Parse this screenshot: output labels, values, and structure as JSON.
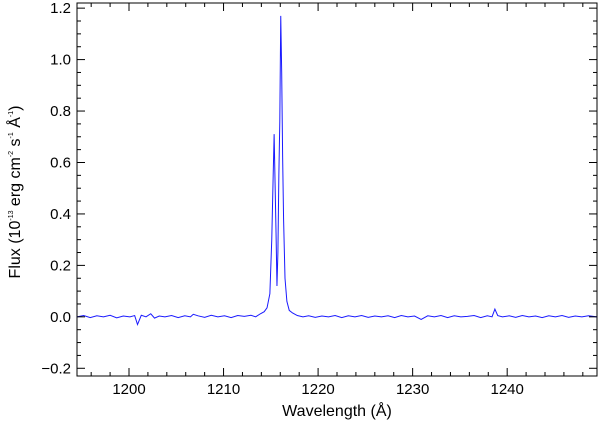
{
  "chart_data": {
    "type": "line",
    "title": "",
    "xlabel": "Wavelength (Å)",
    "ylabel": {
      "prefix": "Flux (10",
      "exp1": "-13",
      "mid1": " erg cm",
      "exp2": "-2",
      "mid2": " s",
      "exp3": "-1",
      "mid3": " Å",
      "exp4": "-1",
      "suffix": ")"
    },
    "xlim": [
      1194.5,
      1249.5
    ],
    "ylim": [
      -0.23,
      1.22
    ],
    "grid": false,
    "colors": {
      "line": "#1a1aff",
      "axis": "#000000"
    },
    "xticks": [
      {
        "value": 1200,
        "label": "1200"
      },
      {
        "value": 1210,
        "label": "1210"
      },
      {
        "value": 1220,
        "label": "1220"
      },
      {
        "value": 1230,
        "label": "1230"
      },
      {
        "value": 1240,
        "label": "1240"
      }
    ],
    "yticks": [
      {
        "value": -0.2,
        "label": "−0.2"
      },
      {
        "value": 0.0,
        "label": "0.0"
      },
      {
        "value": 0.2,
        "label": "0.2"
      },
      {
        "value": 0.4,
        "label": "0.4"
      },
      {
        "value": 0.6,
        "label": "0.6"
      },
      {
        "value": 0.8,
        "label": "0.8"
      },
      {
        "value": 1.0,
        "label": "1.0"
      },
      {
        "value": 1.2,
        "label": "1.2"
      }
    ],
    "series": [
      {
        "x": [
          1194.5,
          1195.2,
          1195.9,
          1196.6,
          1197.3,
          1198.0,
          1198.7,
          1199.4,
          1200.1,
          1200.6,
          1200.9,
          1201.3,
          1201.8,
          1202.3,
          1202.7,
          1203.2,
          1203.8,
          1204.5,
          1205.2,
          1205.9,
          1206.5,
          1206.8,
          1207.3,
          1208.0,
          1208.7,
          1209.4,
          1210.1,
          1210.8,
          1211.5,
          1212.2,
          1212.9,
          1213.4,
          1213.9,
          1214.3,
          1214.6,
          1214.9,
          1215.1,
          1215.25,
          1215.35,
          1215.45,
          1215.55,
          1215.65,
          1215.75,
          1215.85,
          1215.95,
          1216.05,
          1216.15,
          1216.25,
          1216.35,
          1216.5,
          1216.7,
          1216.95,
          1217.3,
          1217.8,
          1218.4,
          1219.0,
          1219.7,
          1220.4,
          1221.1,
          1221.8,
          1222.5,
          1223.2,
          1223.9,
          1224.6,
          1225.3,
          1226.0,
          1226.7,
          1227.4,
          1228.1,
          1228.8,
          1229.5,
          1230.2,
          1230.9,
          1231.6,
          1232.3,
          1233.0,
          1233.7,
          1234.4,
          1235.1,
          1235.8,
          1236.5,
          1237.2,
          1237.9,
          1238.4,
          1238.7,
          1239.0,
          1239.5,
          1240.2,
          1240.9,
          1241.6,
          1242.3,
          1243.0,
          1243.7,
          1244.4,
          1245.1,
          1245.8,
          1246.5,
          1247.2,
          1247.9,
          1248.6,
          1249.5
        ],
        "y": [
          0.0,
          0.005,
          -0.003,
          0.004,
          0.0,
          0.006,
          -0.004,
          0.003,
          0.0,
          0.005,
          -0.03,
          0.006,
          0.0,
          0.012,
          -0.005,
          0.003,
          0.0,
          0.005,
          -0.003,
          0.004,
          0.0,
          0.01,
          0.004,
          -0.002,
          0.006,
          0.0,
          0.004,
          -0.003,
          0.005,
          0.002,
          0.006,
          0.0,
          0.012,
          0.02,
          0.035,
          0.09,
          0.3,
          0.55,
          0.71,
          0.52,
          0.33,
          0.12,
          0.25,
          0.55,
          0.76,
          1.17,
          0.95,
          0.62,
          0.38,
          0.15,
          0.06,
          0.025,
          0.015,
          0.005,
          0.0,
          0.004,
          -0.002,
          0.003,
          0.0,
          0.005,
          -0.003,
          0.004,
          0.0,
          0.005,
          -0.002,
          0.003,
          0.0,
          0.004,
          -0.003,
          0.005,
          0.0,
          0.003,
          -0.01,
          0.004,
          0.0,
          0.005,
          -0.003,
          0.004,
          0.0,
          0.002,
          0.005,
          -0.003,
          0.004,
          0.0,
          0.03,
          0.005,
          0.0,
          0.004,
          -0.002,
          0.005,
          0.0,
          0.003,
          -0.003,
          0.004,
          0.0,
          0.005,
          -0.002,
          0.003,
          0.0,
          0.004,
          0.0
        ]
      }
    ]
  }
}
